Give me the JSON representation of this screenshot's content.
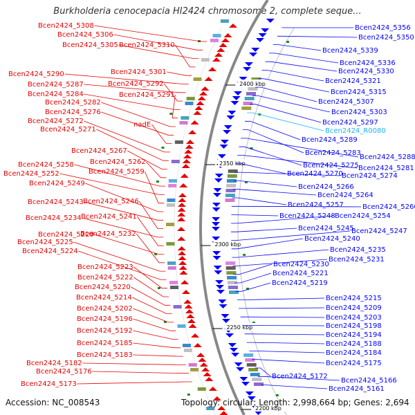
{
  "title": "Burkholderia cenocepacia HI2424 chromosome 2, complete seque...",
  "accession": "Accession: NC_008543",
  "topology": "Topology: circular; Length: 2,998,664 bp; Genes: 2,694",
  "colors": {
    "left": "#e60000",
    "right": "#0000ff",
    "highlight": "#1ab2ff"
  },
  "scale_ticks": [
    "2400 kbp",
    "2350 kbp",
    "2300 kbp",
    "2250 kbp",
    "2200 kbp"
  ],
  "left_genes": [
    "Bcen2424_5308",
    "Bcen2424_5306",
    "Bcen2424_5305",
    "Bcen2424_5310",
    "Bcen2424_5301",
    "Bcen2424_5290",
    "Bcen2424_5287",
    "Bcen2424_5292",
    "Bcen2424_5284",
    "Bcen2424_5291",
    "Bcen2424_5282",
    "Bcen2424_5276",
    "nadE",
    "Bcen2424_5272",
    "Bcen2424_5271",
    "Bcen2424_5267",
    "Bcen2424_5262",
    "Bcen2424_5258",
    "Bcen2424_5252",
    "Bcen2424_5259",
    "Bcen2424_5249",
    "Bcen2424_5243",
    "Bcen2424_5246",
    "Bcen2424_5234",
    "Bcen2424_5241",
    "Bcen2424_5229",
    "Bcen2424_5232",
    "Bcen2424_5225",
    "Bcen2424_5224",
    "Bcen2424_5223",
    "Bcen2424_5222",
    "Bcen2424_5220",
    "Bcen2424_5214",
    "Bcen2424_5202",
    "Bcen2424_5196",
    "Bcen2424_5192",
    "Bcen2424_5185",
    "Bcen2424_5183",
    "Bcen2424_5182",
    "Bcen2424_5176",
    "Bcen2424_5173"
  ],
  "right_genes": [
    "Bcen2424_5356",
    "Bcen2424_5350",
    "Bcen2424_5339",
    "Bcen2424_5336",
    "Bcen2424_5330",
    "Bcen2424_5321",
    "Bcen2424_5315",
    "Bcen2424_5307",
    "Bcen2424_5303",
    "Bcen2424_5297",
    "Bcen2424_R0080",
    "Bcen2424_5289",
    "Bcen2424_5283",
    "Bcen2424_5288",
    "Bcen2424_5275",
    "Bcen2424_5281",
    "Bcen2424_5270",
    "Bcen2424_5274",
    "Bcen2424_5266",
    "Bcen2424_5264",
    "Bcen2424_5257",
    "Bcen2424_5260",
    "Bcen2424_5248",
    "Bcen2424_5254",
    "Bcen2424_5245",
    "Bcen2424_5247",
    "Bcen2424_5240",
    "Bcen2424_5235",
    "Bcen2424_5231",
    "Bcen2424_5230",
    "Bcen2424_5221",
    "Bcen2424_5219",
    "Bcen2424_5215",
    "Bcen2424_5209",
    "Bcen2424_5203",
    "Bcen2424_5198",
    "Bcen2424_5194",
    "Bcen2424_5188",
    "Bcen2424_5184",
    "Bcen2424_5175",
    "Bcen2424_5172",
    "Bcen2424_5166",
    "Bcen2424_5161"
  ]
}
